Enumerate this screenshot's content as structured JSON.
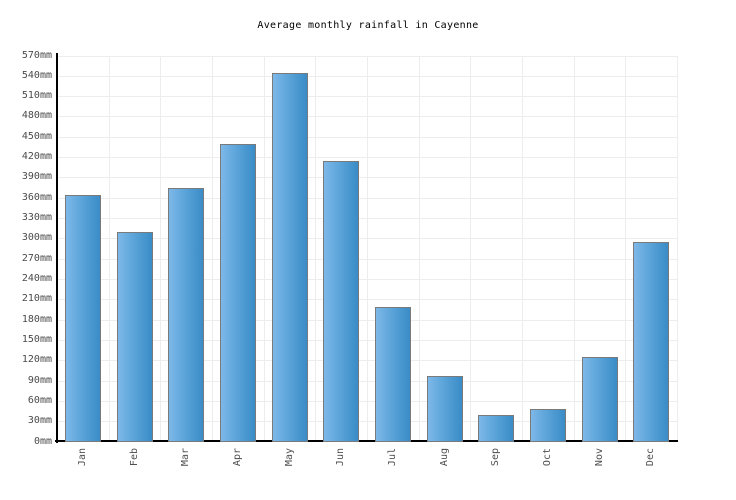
{
  "page": {
    "background": "#ffffff"
  },
  "chart_data": {
    "type": "bar",
    "title": "Average monthly rainfall in Cayenne",
    "categories": [
      "Jan",
      "Feb",
      "Mar",
      "Apr",
      "May",
      "Jun",
      "Jul",
      "Aug",
      "Sep",
      "Oct",
      "Nov",
      "Dec"
    ],
    "values": [
      365,
      310,
      375,
      440,
      545,
      415,
      200,
      98,
      40,
      48,
      125,
      295
    ],
    "unit": "mm",
    "yticks": [
      "0mm",
      "30mm",
      "60mm",
      "90mm",
      "120mm",
      "150mm",
      "180mm",
      "210mm",
      "240mm",
      "270mm",
      "300mm",
      "330mm",
      "360mm",
      "390mm",
      "420mm",
      "450mm",
      "480mm",
      "510mm",
      "540mm",
      "570mm"
    ],
    "ylim": [
      0,
      570
    ],
    "ytick_step": 30,
    "xlabel": "",
    "ylabel": "",
    "grid": true,
    "legend_position": "none",
    "colors": {
      "bar_fill_left": "#7db8e8",
      "bar_fill_right": "#3a8cc7",
      "bar_border": "#7a7a7a",
      "gridline": "#ededed",
      "axis": "#000000",
      "tick_text": "#4a4a4a",
      "title_text": "#000000"
    }
  }
}
